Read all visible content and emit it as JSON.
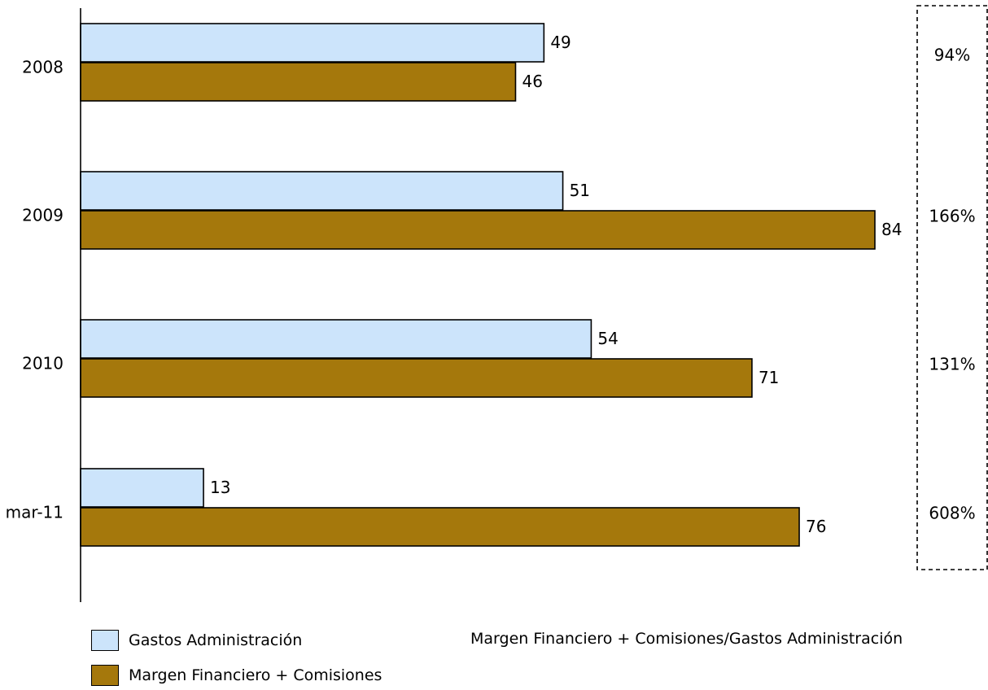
{
  "chart_data": {
    "type": "bar",
    "orientation": "horizontal",
    "categories": [
      "2008",
      "2009",
      "2010",
      "mar-11"
    ],
    "series": [
      {
        "name": "Gastos Administración",
        "values": [
          49,
          51,
          54,
          13
        ],
        "color": "#cce4fb"
      },
      {
        "name": "Margen Financiero + Comisiones",
        "values": [
          46,
          84,
          71,
          76
        ],
        "color": "#a5780c"
      }
    ],
    "ratio": {
      "name": "Margen Financiero + Comisiones/Gastos Administración",
      "values": [
        "94%",
        "166%",
        "131%",
        "608%"
      ]
    },
    "xlim": [
      0,
      90
    ],
    "grid": false,
    "legend_position": "bottom"
  }
}
